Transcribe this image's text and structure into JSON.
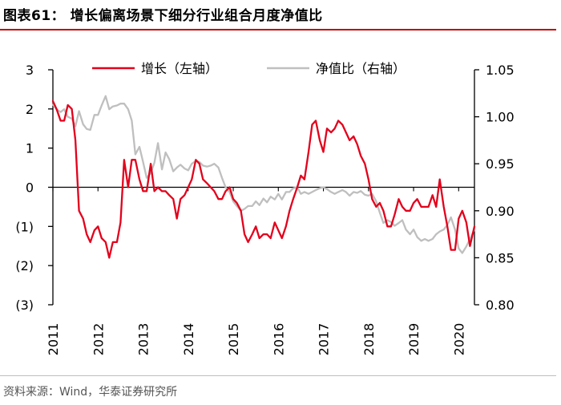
{
  "figure": {
    "title": "图表61：  增长偏离场景下细分行业组合月度净值比",
    "source": "资料来源：Wind，华泰证券研究所"
  },
  "colors": {
    "growth": "#e3001b",
    "nav": "#bfbfbf",
    "axis": "#000000",
    "rule": "#c00000"
  },
  "chart_data": {
    "type": "line",
    "title": "增长偏离场景下细分行业组合月度净值比",
    "xlabel": "",
    "x_ticks": [
      "2011",
      "2012",
      "2013",
      "2014",
      "2015",
      "2016",
      "2017",
      "2018",
      "2019",
      "2020"
    ],
    "x_range": [
      2011.0,
      2020.35
    ],
    "left_axis": {
      "range": [
        -3,
        3
      ],
      "ticks": [
        3,
        2,
        1,
        0,
        -1,
        -2,
        -3
      ],
      "tick_labels": [
        "3",
        "2",
        "1",
        "0",
        "(1)",
        "(2)",
        "(3)"
      ]
    },
    "right_axis": {
      "range": [
        0.8,
        1.05
      ],
      "ticks": [
        1.05,
        1.0,
        0.95,
        0.9,
        0.85,
        0.8
      ],
      "tick_labels": [
        "1.05",
        "1.00",
        "0.95",
        "0.90",
        "0.85",
        "0.80"
      ]
    },
    "legend": {
      "position": "top",
      "growth_label": "增长（左轴）",
      "nav_label": "净值比（右轴）"
    },
    "series": [
      {
        "name": "增长（左轴）",
        "axis": "left",
        "x": [
          2011.0,
          2011.08,
          2011.17,
          2011.25,
          2011.33,
          2011.42,
          2011.5,
          2011.58,
          2011.67,
          2011.75,
          2011.83,
          2011.92,
          2012.0,
          2012.08,
          2012.17,
          2012.25,
          2012.33,
          2012.42,
          2012.5,
          2012.58,
          2012.67,
          2012.75,
          2012.83,
          2012.92,
          2013.0,
          2013.08,
          2013.17,
          2013.25,
          2013.33,
          2013.42,
          2013.5,
          2013.58,
          2013.67,
          2013.75,
          2013.83,
          2013.92,
          2014.0,
          2014.08,
          2014.17,
          2014.25,
          2014.33,
          2014.42,
          2014.5,
          2014.58,
          2014.67,
          2014.75,
          2014.83,
          2014.92,
          2015.0,
          2015.08,
          2015.17,
          2015.25,
          2015.33,
          2015.42,
          2015.5,
          2015.58,
          2015.67,
          2015.75,
          2015.83,
          2015.92,
          2016.0,
          2016.08,
          2016.17,
          2016.25,
          2016.33,
          2016.42,
          2016.5,
          2016.58,
          2016.67,
          2016.75,
          2016.83,
          2016.92,
          2017.0,
          2017.08,
          2017.17,
          2017.25,
          2017.33,
          2017.42,
          2017.5,
          2017.58,
          2017.67,
          2017.75,
          2017.83,
          2017.92,
          2018.0,
          2018.08,
          2018.17,
          2018.25,
          2018.33,
          2018.42,
          2018.5,
          2018.58,
          2018.67,
          2018.75,
          2018.83,
          2018.92,
          2019.0,
          2019.08,
          2019.17,
          2019.25,
          2019.33,
          2019.42,
          2019.5,
          2019.58,
          2019.67,
          2019.75,
          2019.83,
          2019.92,
          2020.0,
          2020.08,
          2020.17,
          2020.25,
          2020.35
        ],
        "values": [
          2.2,
          2.0,
          1.7,
          1.7,
          2.1,
          2.0,
          1.2,
          -0.6,
          -0.8,
          -1.2,
          -1.4,
          -1.1,
          -1.0,
          -1.3,
          -1.4,
          -1.8,
          -1.4,
          -1.4,
          -0.9,
          0.7,
          0.0,
          0.7,
          0.7,
          0.2,
          -0.1,
          -0.1,
          0.6,
          -0.1,
          0.0,
          -0.1,
          -0.1,
          -0.2,
          -0.3,
          -0.8,
          -0.3,
          -0.2,
          0.0,
          0.2,
          0.7,
          0.6,
          0.2,
          0.1,
          0.0,
          -0.1,
          -0.3,
          -0.3,
          -0.1,
          0.0,
          -0.3,
          -0.4,
          -0.6,
          -1.2,
          -1.4,
          -1.2,
          -1.0,
          -1.3,
          -1.2,
          -1.2,
          -1.3,
          -0.9,
          -1.1,
          -1.3,
          -1.0,
          -0.6,
          -0.3,
          0.0,
          0.3,
          0.2,
          0.9,
          1.6,
          1.7,
          1.2,
          0.9,
          1.5,
          1.4,
          1.5,
          1.7,
          1.6,
          1.4,
          1.2,
          1.3,
          1.1,
          0.8,
          0.6,
          0.2,
          -0.3,
          -0.5,
          -0.4,
          -0.6,
          -1.0,
          -1.0,
          -0.7,
          -0.3,
          -0.5,
          -0.6,
          -0.6,
          -0.4,
          -0.3,
          -0.5,
          -0.5,
          -0.5,
          -0.2,
          -0.5,
          0.2,
          -0.5,
          -1.0,
          -1.6,
          -1.6,
          -0.8,
          -0.6,
          -0.9,
          -1.5,
          -1.0
        ]
      },
      {
        "name": "净值比（右轴）",
        "axis": "right",
        "x": [
          2011.0,
          2011.08,
          2011.17,
          2011.25,
          2011.33,
          2011.42,
          2011.5,
          2011.58,
          2011.67,
          2011.75,
          2011.83,
          2011.92,
          2012.0,
          2012.08,
          2012.17,
          2012.25,
          2012.33,
          2012.42,
          2012.5,
          2012.58,
          2012.67,
          2012.75,
          2012.83,
          2012.92,
          2013.0,
          2013.08,
          2013.17,
          2013.25,
          2013.33,
          2013.42,
          2013.5,
          2013.58,
          2013.67,
          2013.75,
          2013.83,
          2013.92,
          2014.0,
          2014.08,
          2014.17,
          2014.25,
          2014.33,
          2014.42,
          2014.5,
          2014.58,
          2014.67,
          2014.75,
          2014.83,
          2014.92,
          2015.0,
          2015.08,
          2015.17,
          2015.25,
          2015.33,
          2015.42,
          2015.5,
          2015.58,
          2015.67,
          2015.75,
          2015.83,
          2015.92,
          2016.0,
          2016.08,
          2016.17,
          2016.25,
          2016.33,
          2016.42,
          2016.5,
          2016.58,
          2016.67,
          2016.75,
          2016.83,
          2016.92,
          2017.0,
          2017.08,
          2017.17,
          2017.25,
          2017.33,
          2017.42,
          2017.5,
          2017.58,
          2017.67,
          2017.75,
          2017.83,
          2017.92,
          2018.0,
          2018.08,
          2018.17,
          2018.25,
          2018.33,
          2018.42,
          2018.5,
          2018.58,
          2018.67,
          2018.75,
          2018.83,
          2018.92,
          2019.0,
          2019.08,
          2019.17,
          2019.25,
          2019.33,
          2019.42,
          2019.5,
          2019.58,
          2019.67,
          2019.75,
          2019.83,
          2019.92,
          2020.0,
          2020.08,
          2020.17,
          2020.25,
          2020.35
        ],
        "values": [
          1.013,
          1.008,
          1.005,
          1.008,
          1.0,
          0.998,
          0.99,
          1.006,
          0.992,
          0.987,
          0.986,
          1.002,
          1.002,
          1.012,
          1.022,
          1.008,
          1.011,
          1.012,
          1.014,
          1.014,
          1.008,
          0.996,
          0.96,
          0.968,
          0.952,
          0.935,
          0.94,
          0.951,
          0.972,
          0.944,
          0.962,
          0.955,
          0.942,
          0.946,
          0.949,
          0.945,
          0.943,
          0.95,
          0.953,
          0.952,
          0.948,
          0.947,
          0.948,
          0.95,
          0.946,
          0.935,
          0.925,
          0.92,
          0.91,
          0.905,
          0.9,
          0.902,
          0.905,
          0.905,
          0.91,
          0.906,
          0.913,
          0.909,
          0.915,
          0.912,
          0.918,
          0.912,
          0.92,
          0.92,
          0.924,
          0.925,
          0.918,
          0.92,
          0.918,
          0.92,
          0.922,
          0.924,
          0.925,
          0.923,
          0.92,
          0.918,
          0.92,
          0.922,
          0.92,
          0.916,
          0.92,
          0.919,
          0.921,
          0.917,
          0.916,
          0.918,
          0.91,
          0.898,
          0.887,
          0.89,
          0.888,
          0.884,
          0.887,
          0.89,
          0.88,
          0.875,
          0.88,
          0.872,
          0.868,
          0.87,
          0.868,
          0.87,
          0.875,
          0.878,
          0.88,
          0.885,
          0.893,
          0.88,
          0.86,
          0.855,
          0.862,
          0.87,
          0.88
        ]
      }
    ]
  }
}
